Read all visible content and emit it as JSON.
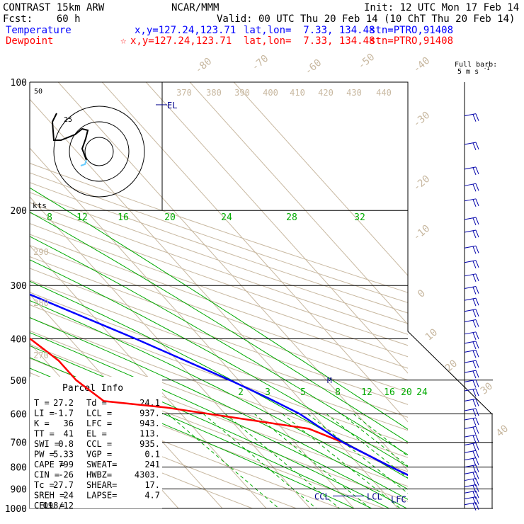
{
  "header": {
    "title": "CONTRAST 15km ARW",
    "fcst": "Fcst:    60 h",
    "center": "NCAR/MMM",
    "init": "Init: 12 UTC Mon 17 Feb 14",
    "valid": "Valid: 00 UTC Thu 20 Feb 14 (10 ChT Thu 20 Feb 14)",
    "temp_label": "Temperature",
    "temp_xy": "x,y=127.24,123.71",
    "temp_latlon": "lat,lon=  7.33, 134.48",
    "temp_stn": "stn=PTRO,91408",
    "dew_label": "Dewpoint",
    "dew_xy": "x,y=127.24,123.71",
    "dew_latlon": "lat,lon=  7.33, 134.48",
    "dew_stn": "stn=PTRO,91408",
    "barb_label_1": "Full barb:",
    "barb_label_2": "5 m s"
  },
  "colors": {
    "temperature": "#0000ff",
    "dewpoint": "#ff0000",
    "isotherm": "#c8b8a0",
    "mixing_ratio": "#00aa00",
    "moist_adiabat": "#00aa00",
    "hodograph_circle": "#000000",
    "barbs": "#0000aa",
    "grid": "#000000"
  },
  "chart_data": {
    "type": "line",
    "title": "Skew-T log-P sounding",
    "pressure_levels": [
      "100",
      "200",
      "300",
      "400",
      "500",
      "600",
      "700",
      "800",
      "900",
      "1000"
    ],
    "isotherm_labels": [
      "-80",
      "-70",
      "-60",
      "-50",
      "-40",
      "-30",
      "-20",
      "-10",
      "0",
      "10",
      "20",
      "30",
      "40"
    ],
    "theta_labels": [
      "370",
      "380",
      "390",
      "400",
      "410",
      "420",
      "430",
      "440",
      "290",
      "280",
      "270"
    ],
    "mixing_ratio_upper": [
      "8",
      "12",
      "16",
      "20",
      "24",
      "28",
      "32"
    ],
    "mixing_ratio_lower": [
      "2",
      "3",
      "5",
      "8",
      "12",
      "16",
      "20",
      "24"
    ],
    "series": [
      {
        "name": "Temperature",
        "points": [
          [
            100,
            -80
          ],
          [
            125,
            -73
          ],
          [
            150,
            -67
          ],
          [
            200,
            -55
          ],
          [
            250,
            -43
          ],
          [
            300,
            -33
          ],
          [
            400,
            -15
          ],
          [
            500,
            -2
          ],
          [
            550,
            3
          ],
          [
            600,
            7
          ],
          [
            650,
            9
          ],
          [
            700,
            11
          ],
          [
            800,
            17
          ],
          [
            850,
            20
          ],
          [
            900,
            23
          ],
          [
            950,
            25
          ],
          [
            1000,
            27.2
          ]
        ]
      },
      {
        "name": "Dewpoint",
        "points": [
          [
            100,
            -88
          ],
          [
            115,
            -94
          ],
          [
            150,
            -90
          ],
          [
            175,
            -87
          ],
          [
            200,
            -82
          ],
          [
            250,
            -70
          ],
          [
            300,
            -65
          ],
          [
            350,
            -53
          ],
          [
            400,
            -39
          ],
          [
            450,
            -37
          ],
          [
            500,
            -37
          ],
          [
            560,
            -35
          ],
          [
            580,
            -22
          ],
          [
            650,
            6
          ],
          [
            700,
            11
          ],
          [
            800,
            17
          ],
          [
            850,
            20
          ],
          [
            900,
            22
          ],
          [
            950,
            23
          ],
          [
            1000,
            24.1
          ]
        ]
      }
    ],
    "parcel_labels": {
      "el": "EL",
      "ccl": "CCL",
      "lcl": "LCL",
      "lfc": "LFC",
      "m": "M"
    },
    "hodograph": {
      "ring_label_1": "50",
      "ring_label_2": "25",
      "units": "kts"
    },
    "barbs_pressure": [
      120,
      140,
      160,
      175,
      190,
      210,
      225,
      245,
      265,
      285,
      305,
      325,
      345,
      365,
      390,
      410,
      430,
      455,
      480,
      505,
      530,
      560,
      590,
      620,
      650,
      680,
      710,
      740,
      770,
      800,
      830,
      860,
      890,
      920,
      950,
      980
    ]
  },
  "parcel_info": {
    "title": "Parcel Info",
    "rows": [
      [
        "T  =",
        "27.2",
        "Td  =",
        "24.1"
      ],
      [
        "LI  =",
        "-1.7",
        "LCL =",
        "937."
      ],
      [
        "K   =",
        "36",
        "LFC =",
        "943."
      ],
      [
        "TT  =",
        "41",
        "EL  =",
        "113."
      ],
      [
        "SWI =",
        "0.8",
        "CCL =",
        "935."
      ],
      [
        "PW  =",
        "5.33",
        "VGP =",
        "0.1"
      ],
      [
        "CAPE =",
        "799",
        "SWEAT=",
        "241"
      ],
      [
        "CIN =",
        "-26",
        "HWBZ=",
        "4303."
      ],
      [
        "Tc  =",
        "27.7",
        "SHEAR=",
        "17."
      ],
      [
        "SREH =",
        "24",
        "LAPSE=",
        "4.7"
      ],
      [
        "CELL =",
        "098/12",
        "",
        ""
      ]
    ]
  }
}
